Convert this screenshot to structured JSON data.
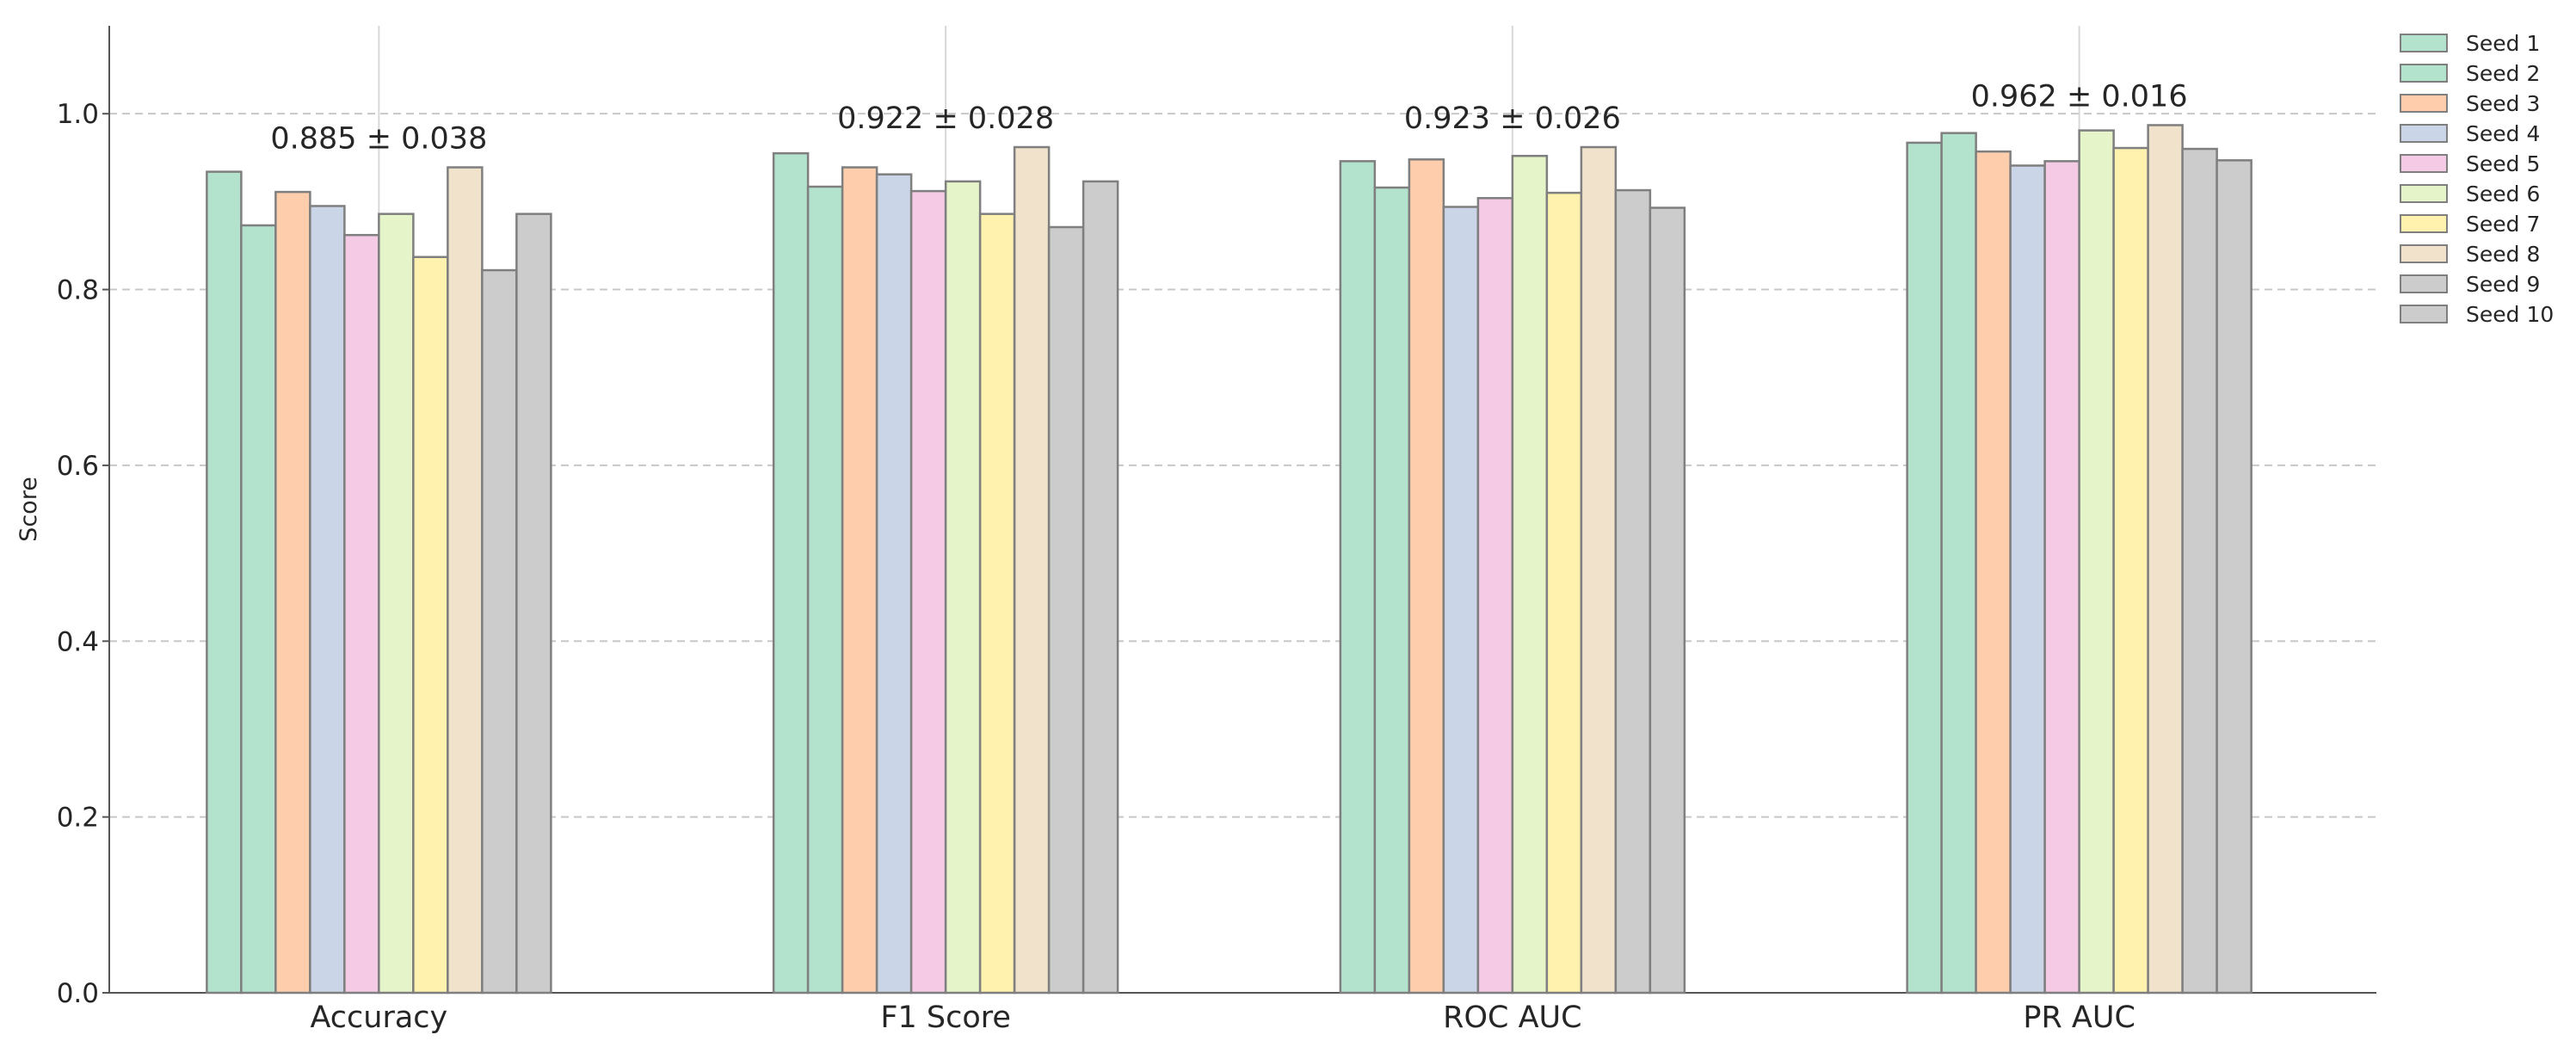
{
  "chart_data": {
    "type": "bar",
    "title": "",
    "xlabel": "",
    "ylabel": "Score",
    "ylim": [
      0,
      1.1
    ],
    "yticks": [
      0.0,
      0.2,
      0.4,
      0.6,
      0.8,
      1.0
    ],
    "ytick_labels": [
      "0.0",
      "0.2",
      "0.4",
      "0.6",
      "0.8",
      "1.0"
    ],
    "grid": true,
    "legend_position": "top-right",
    "categories": [
      "Accuracy",
      "F1 Score",
      "ROC AUC",
      "PR AUC"
    ],
    "annotations": [
      "0.885 ± 0.038",
      "0.922 ± 0.028",
      "0.923 ± 0.026",
      "0.962 ± 0.016"
    ],
    "series": [
      {
        "name": "Seed 1",
        "color": "#b3e2cd",
        "values": [
          0.934,
          0.955,
          0.946,
          0.967
        ]
      },
      {
        "name": "Seed 2",
        "color": "#b3e2cd",
        "values": [
          0.873,
          0.917,
          0.916,
          0.978
        ]
      },
      {
        "name": "Seed 3",
        "color": "#fdcdac",
        "values": [
          0.911,
          0.939,
          0.948,
          0.957
        ]
      },
      {
        "name": "Seed 4",
        "color": "#cbd5e8",
        "values": [
          0.895,
          0.931,
          0.894,
          0.941
        ]
      },
      {
        "name": "Seed 5",
        "color": "#f4cae4",
        "values": [
          0.862,
          0.912,
          0.904,
          0.946
        ]
      },
      {
        "name": "Seed 6",
        "color": "#e6f5c9",
        "values": [
          0.886,
          0.923,
          0.952,
          0.981
        ]
      },
      {
        "name": "Seed 7",
        "color": "#fff2ae",
        "values": [
          0.837,
          0.886,
          0.91,
          0.961
        ]
      },
      {
        "name": "Seed 8",
        "color": "#f1e2cc",
        "values": [
          0.939,
          0.962,
          0.962,
          0.987
        ]
      },
      {
        "name": "Seed 9",
        "color": "#cccccc",
        "values": [
          0.822,
          0.871,
          0.913,
          0.96
        ]
      },
      {
        "name": "Seed 10",
        "color": "#cccccc",
        "values": [
          0.886,
          0.923,
          0.893,
          0.947
        ]
      }
    ]
  }
}
